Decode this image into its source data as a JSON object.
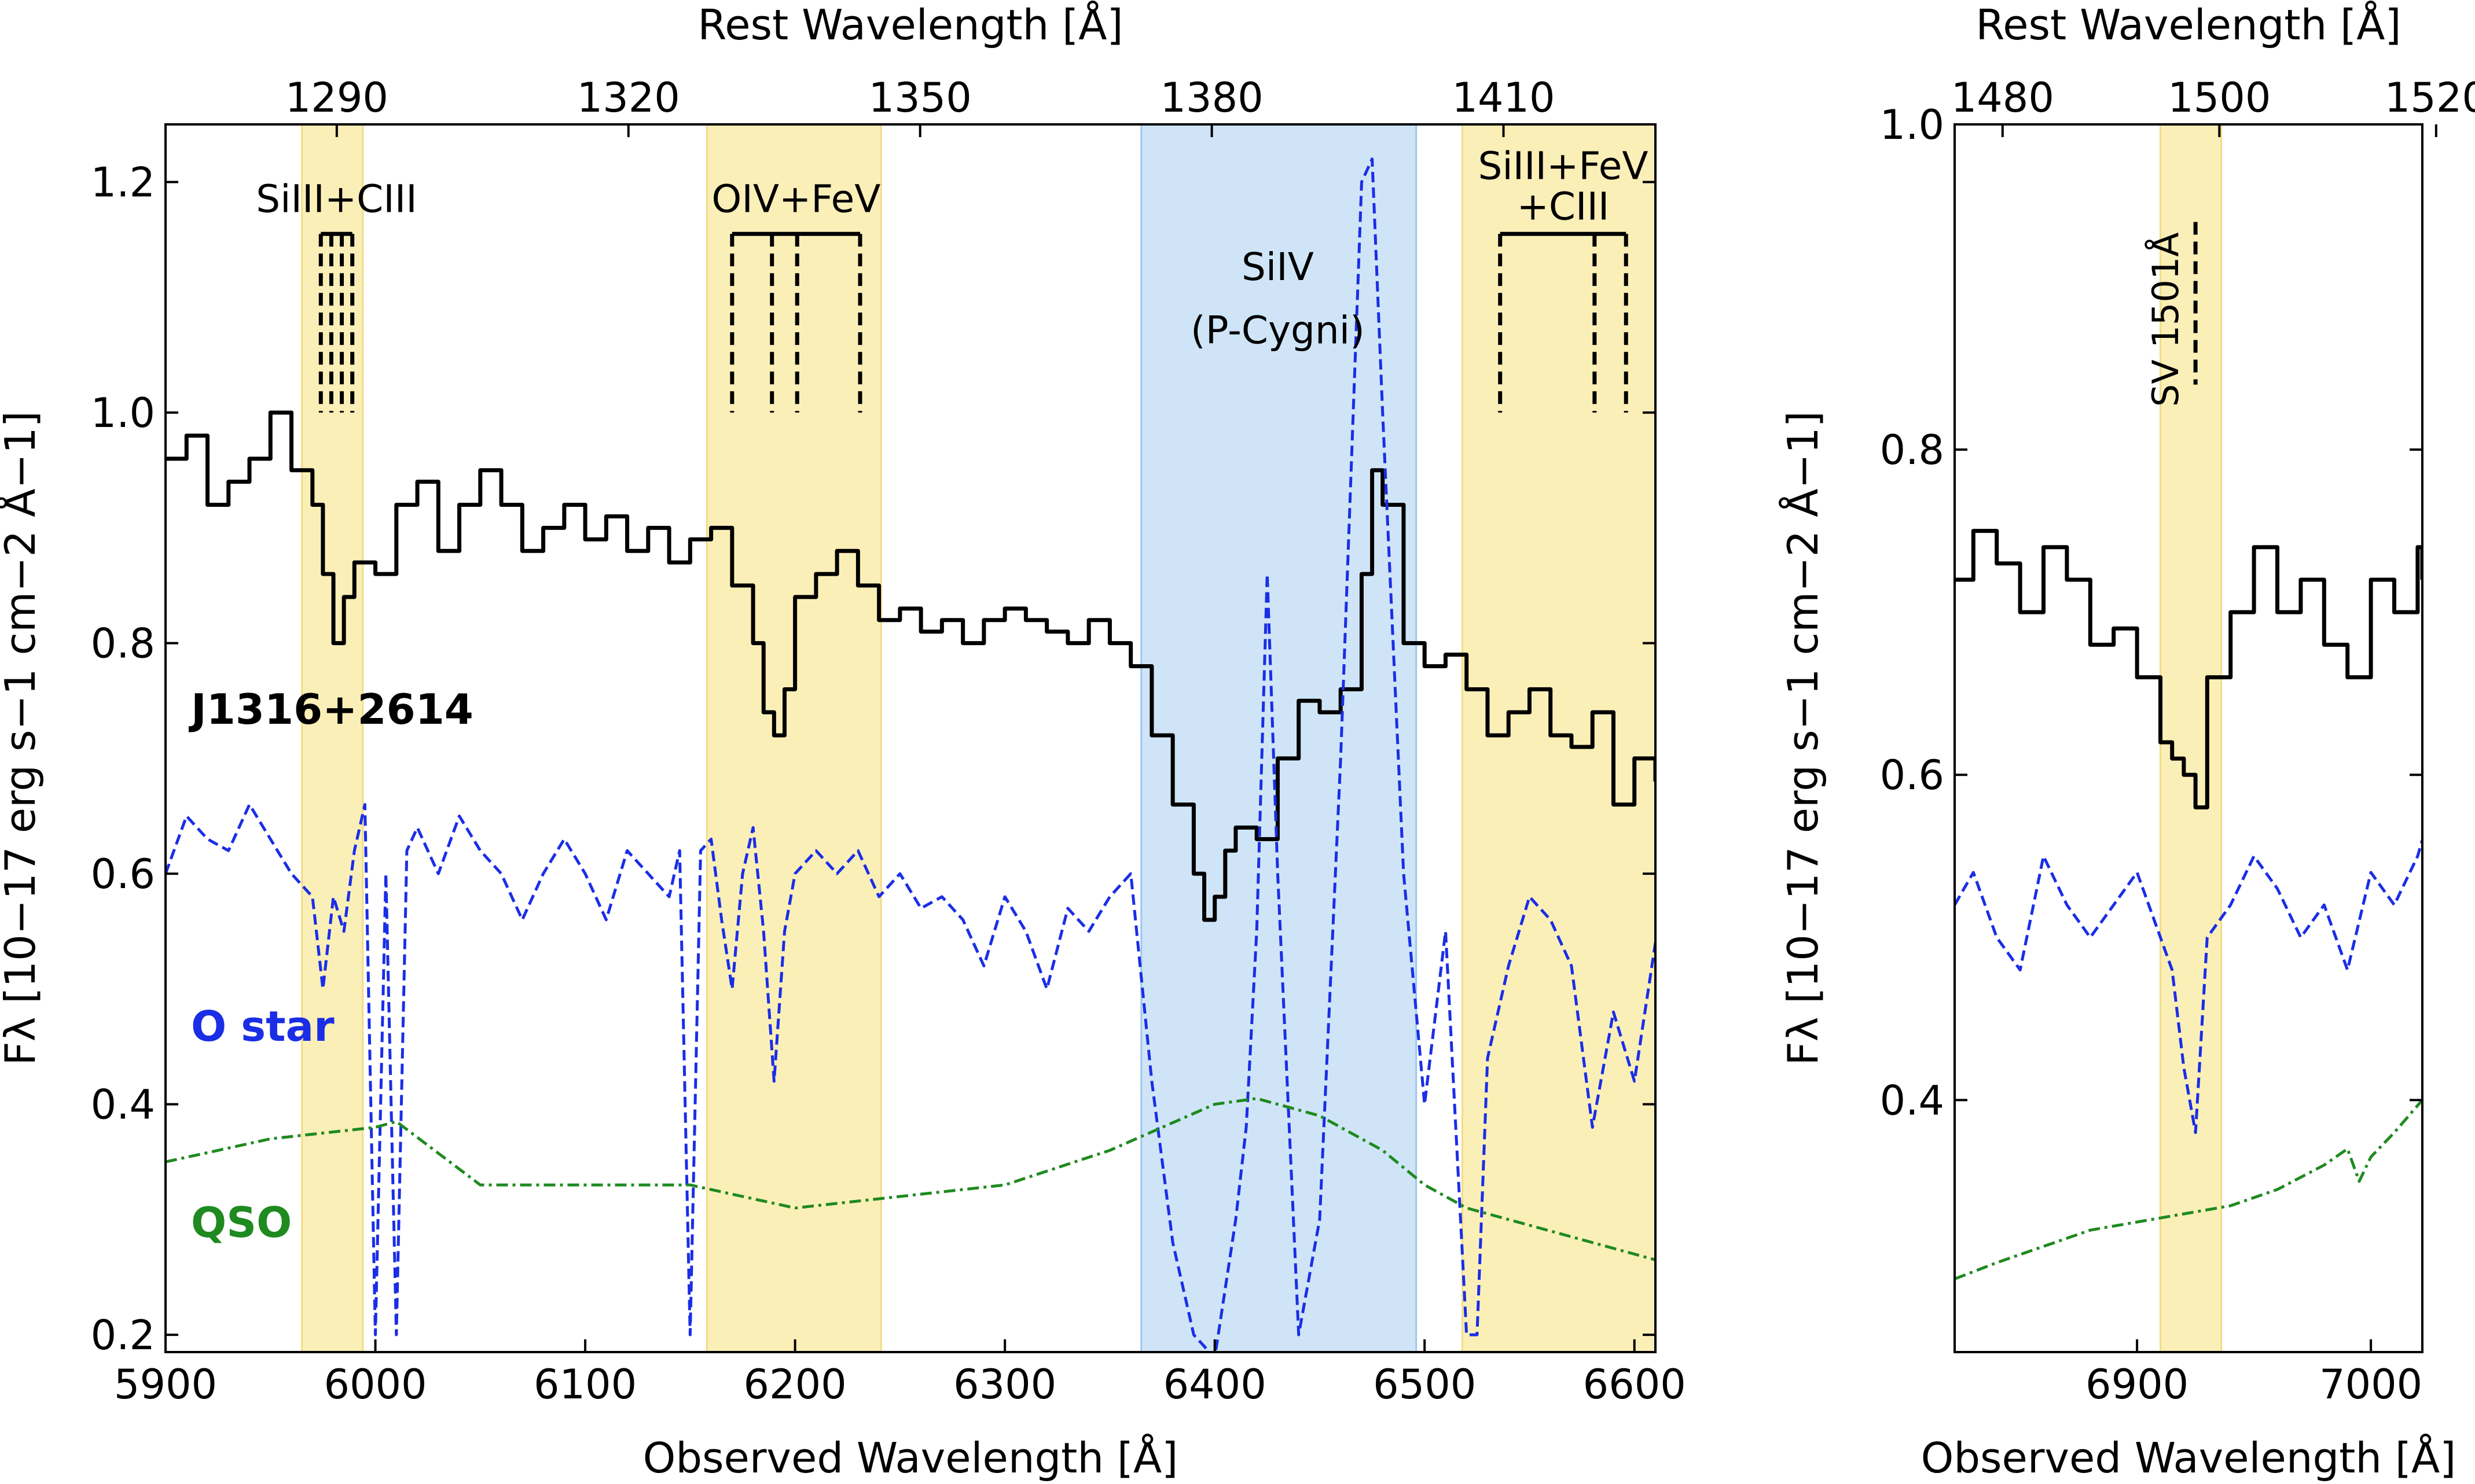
{
  "chart_data": [
    {
      "type": "line",
      "panel": "left",
      "xlabel": "Observed Wavelength [Å]",
      "ylabel": "Fλ [10−17 erg s−1 cm−2 Å−1]",
      "top_xlabel": "Rest Wavelength [Å]",
      "xlim": [
        5900,
        6610
      ],
      "ylim": [
        0.185,
        1.25
      ],
      "xticks": [
        5900,
        6000,
        6100,
        6200,
        6300,
        6400,
        6500,
        6600
      ],
      "xtick_labels": [
        "5900",
        "6000",
        "6100",
        "6200",
        "6300",
        "6400",
        "6500",
        "6600"
      ],
      "yticks": [
        0.2,
        0.4,
        0.6,
        0.8,
        1.0,
        1.2
      ],
      "ytick_labels": [
        "0.2",
        "0.4",
        "0.6",
        "0.8",
        "1.0",
        "1.2"
      ],
      "top_xticks_observed": [
        5981.6,
        6120.6,
        6259.6,
        6398.6,
        6537.6
      ],
      "top_xtick_labels": [
        "1290",
        "1320",
        "1350",
        "1380",
        "1410"
      ],
      "shaded_regions": [
        {
          "x": [
            5965,
            5994
          ],
          "color": "#fbefb8"
        },
        {
          "x": [
            6158,
            6241
          ],
          "color": "#fbefb8"
        },
        {
          "x": [
            6365,
            6496
          ],
          "color": "#cfe5f7"
        },
        {
          "x": [
            6518,
            6610
          ],
          "color": "#fbefb8"
        }
      ],
      "line_groups": [
        {
          "label": "SiIII+CIII",
          "bar_y": 1.155,
          "end_y": 1.0,
          "x": [
            5974,
            5979,
            5984,
            5989
          ]
        },
        {
          "label": "OIV+FeV",
          "bar_y": 1.155,
          "end_y": 1.0,
          "x": [
            6170,
            6189,
            6201,
            6231
          ]
        },
        {
          "label": "SiIII+FeV",
          "label2": "+CIII",
          "bar_y": 1.155,
          "end_y": 1.0,
          "x": [
            6536,
            6581,
            6596
          ]
        },
        {
          "label": "SiIV",
          "label2": "(P-Cygni)"
        }
      ],
      "series": [
        {
          "name": "J1316+2614",
          "color": "#000000",
          "style": "solid-steps",
          "x": [
            5900,
            5910,
            5920,
            5930,
            5940,
            5950,
            5960,
            5970,
            5975,
            5980,
            5985,
            5990,
            6000,
            6010,
            6020,
            6030,
            6040,
            6050,
            6060,
            6070,
            6080,
            6090,
            6100,
            6110,
            6120,
            6130,
            6140,
            6150,
            6160,
            6170,
            6180,
            6185,
            6190,
            6195,
            6200,
            6210,
            6220,
            6230,
            6240,
            6250,
            6260,
            6270,
            6280,
            6290,
            6300,
            6310,
            6320,
            6330,
            6340,
            6350,
            6360,
            6370,
            6380,
            6390,
            6395,
            6400,
            6405,
            6410,
            6420,
            6430,
            6440,
            6450,
            6460,
            6470,
            6475,
            6480,
            6490,
            6500,
            6510,
            6520,
            6530,
            6540,
            6550,
            6560,
            6570,
            6580,
            6590,
            6600,
            6610
          ],
          "y": [
            0.96,
            0.98,
            0.92,
            0.94,
            0.96,
            1.0,
            0.95,
            0.92,
            0.86,
            0.8,
            0.84,
            0.87,
            0.86,
            0.92,
            0.94,
            0.88,
            0.92,
            0.95,
            0.92,
            0.88,
            0.9,
            0.92,
            0.89,
            0.91,
            0.88,
            0.9,
            0.87,
            0.89,
            0.9,
            0.85,
            0.8,
            0.74,
            0.72,
            0.76,
            0.84,
            0.86,
            0.88,
            0.85,
            0.82,
            0.83,
            0.81,
            0.82,
            0.8,
            0.82,
            0.83,
            0.82,
            0.81,
            0.8,
            0.82,
            0.8,
            0.78,
            0.72,
            0.66,
            0.6,
            0.56,
            0.58,
            0.62,
            0.64,
            0.63,
            0.7,
            0.75,
            0.74,
            0.76,
            0.86,
            0.95,
            0.92,
            0.8,
            0.78,
            0.79,
            0.76,
            0.72,
            0.74,
            0.76,
            0.72,
            0.71,
            0.74,
            0.66,
            0.7,
            0.68
          ]
        },
        {
          "name": "O star",
          "color": "#1a2ee6",
          "style": "dashed",
          "x": [
            5900,
            5910,
            5920,
            5930,
            5940,
            5950,
            5960,
            5970,
            5975,
            5980,
            5985,
            5990,
            5995,
            6000,
            6005,
            6010,
            6015,
            6020,
            6030,
            6040,
            6050,
            6060,
            6070,
            6080,
            6090,
            6100,
            6110,
            6120,
            6130,
            6140,
            6145,
            6150,
            6155,
            6160,
            6165,
            6170,
            6175,
            6180,
            6185,
            6190,
            6195,
            6200,
            6210,
            6220,
            6230,
            6240,
            6250,
            6260,
            6270,
            6280,
            6290,
            6300,
            6310,
            6320,
            6330,
            6340,
            6350,
            6360,
            6370,
            6380,
            6390,
            6400,
            6410,
            6415,
            6420,
            6425,
            6430,
            6435,
            6440,
            6450,
            6460,
            6470,
            6475,
            6480,
            6490,
            6500,
            6510,
            6520,
            6525,
            6530,
            6540,
            6550,
            6560,
            6570,
            6580,
            6590,
            6600,
            6610
          ],
          "y": [
            0.6,
            0.65,
            0.63,
            0.62,
            0.66,
            0.63,
            0.6,
            0.58,
            0.5,
            0.58,
            0.55,
            0.62,
            0.66,
            0.2,
            0.6,
            0.2,
            0.62,
            0.64,
            0.6,
            0.65,
            0.62,
            0.6,
            0.56,
            0.6,
            0.63,
            0.6,
            0.56,
            0.62,
            0.6,
            0.58,
            0.62,
            0.2,
            0.62,
            0.63,
            0.56,
            0.5,
            0.6,
            0.64,
            0.55,
            0.42,
            0.55,
            0.6,
            0.62,
            0.6,
            0.62,
            0.58,
            0.6,
            0.57,
            0.58,
            0.56,
            0.52,
            0.58,
            0.55,
            0.5,
            0.57,
            0.55,
            0.58,
            0.6,
            0.42,
            0.28,
            0.2,
            0.18,
            0.3,
            0.38,
            0.55,
            0.86,
            0.6,
            0.4,
            0.2,
            0.3,
            0.7,
            1.2,
            1.22,
            1.0,
            0.6,
            0.4,
            0.55,
            0.2,
            0.2,
            0.44,
            0.52,
            0.58,
            0.56,
            0.52,
            0.38,
            0.48,
            0.42,
            0.54
          ]
        },
        {
          "name": "QSO",
          "color": "#1f8a1f",
          "style": "dashdot",
          "x": [
            5900,
            5950,
            6000,
            6010,
            6050,
            6100,
            6150,
            6200,
            6250,
            6300,
            6350,
            6400,
            6420,
            6450,
            6480,
            6500,
            6520,
            6550,
            6600,
            6610
          ],
          "y": [
            0.35,
            0.37,
            0.38,
            0.385,
            0.33,
            0.33,
            0.33,
            0.31,
            0.32,
            0.33,
            0.36,
            0.4,
            0.405,
            0.39,
            0.36,
            0.33,
            0.31,
            0.295,
            0.27,
            0.265
          ]
        }
      ]
    },
    {
      "type": "line",
      "panel": "right",
      "xlabel": "Observed Wavelength [Å]",
      "ylabel": "Fλ [10−17 erg s−1 cm−2 Å−1]",
      "top_xlabel": "Rest Wavelength [Å]",
      "xlim": [
        6822,
        7022
      ],
      "ylim": [
        0.245,
        1.0
      ],
      "xticks": [
        6900,
        7000
      ],
      "xtick_labels": [
        "6900",
        "7000"
      ],
      "yticks": [
        0.4,
        0.6,
        0.8,
        1.0
      ],
      "ytick_labels": [
        "0.4",
        "0.6",
        "0.8",
        "1.0"
      ],
      "top_xticks_observed": [
        6842.5,
        6935.2,
        7027.9
      ],
      "top_xtick_labels": [
        "1480",
        "1500",
        "1520"
      ],
      "shaded_regions": [
        {
          "x": [
            6910,
            6936
          ],
          "color": "#fbefb8"
        }
      ],
      "line_groups": [
        {
          "label": "SV 1501Å",
          "x": [
            6925
          ],
          "y_range": [
            0.84,
            0.94
          ]
        }
      ],
      "series": [
        {
          "name": "J1316+2614",
          "color": "#000000",
          "style": "solid-steps",
          "x": [
            6822,
            6830,
            6840,
            6850,
            6860,
            6870,
            6880,
            6890,
            6900,
            6910,
            6915,
            6920,
            6925,
            6930,
            6940,
            6950,
            6960,
            6970,
            6980,
            6990,
            7000,
            7010,
            7020,
            7022
          ],
          "y": [
            0.72,
            0.75,
            0.73,
            0.7,
            0.74,
            0.72,
            0.68,
            0.69,
            0.66,
            0.62,
            0.61,
            0.6,
            0.58,
            0.66,
            0.7,
            0.74,
            0.7,
            0.72,
            0.68,
            0.66,
            0.72,
            0.7,
            0.74,
            0.72
          ]
        },
        {
          "name": "O star",
          "color": "#1a2ee6",
          "style": "dashed",
          "x": [
            6822,
            6830,
            6840,
            6850,
            6860,
            6870,
            6880,
            6890,
            6900,
            6910,
            6915,
            6920,
            6925,
            6930,
            6940,
            6950,
            6960,
            6970,
            6980,
            6990,
            7000,
            7010,
            7020,
            7022
          ],
          "y": [
            0.52,
            0.54,
            0.5,
            0.48,
            0.55,
            0.52,
            0.5,
            0.52,
            0.54,
            0.5,
            0.48,
            0.42,
            0.38,
            0.5,
            0.52,
            0.55,
            0.53,
            0.5,
            0.52,
            0.48,
            0.54,
            0.52,
            0.55,
            0.56
          ]
        },
        {
          "name": "QSO",
          "color": "#1f8a1f",
          "style": "dashdot",
          "x": [
            6822,
            6840,
            6860,
            6880,
            6900,
            6920,
            6940,
            6960,
            6980,
            6990,
            6995,
            7000,
            7010,
            7022
          ],
          "y": [
            0.29,
            0.3,
            0.31,
            0.32,
            0.325,
            0.33,
            0.335,
            0.345,
            0.36,
            0.37,
            0.35,
            0.365,
            0.38,
            0.4
          ]
        }
      ]
    }
  ],
  "object_label": "J1316+2614",
  "ostar_label": "O star",
  "qso_label": "QSO"
}
